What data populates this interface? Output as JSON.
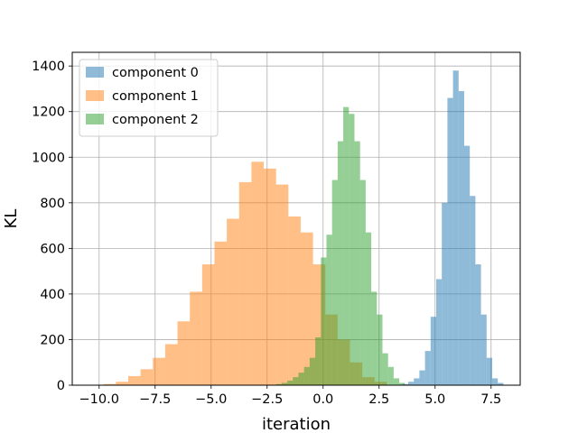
{
  "chart_data": {
    "type": "bar",
    "title": "",
    "xlabel": "iteration",
    "ylabel": "KL",
    "xlim": [
      -11.2,
      8.8
    ],
    "ylim": [
      0,
      1460
    ],
    "x_ticks": [
      -10.0,
      -7.5,
      -5.0,
      -2.5,
      0.0,
      2.5,
      5.0,
      7.5
    ],
    "x_tick_labels": [
      "−10.0",
      "−7.5",
      "−5.0",
      "−2.5",
      "0.0",
      "2.5",
      "5.0",
      "7.5"
    ],
    "y_ticks": [
      0,
      200,
      400,
      600,
      800,
      1000,
      1200,
      1400
    ],
    "y_tick_labels": [
      "0",
      "200",
      "400",
      "600",
      "800",
      "1000",
      "1200",
      "1400"
    ],
    "grid": true,
    "legend_position": "top-left",
    "series": [
      {
        "name": "component 1",
        "color": "#ff7f0e",
        "opacity": 0.5,
        "bins": [
          {
            "x0": -9.8,
            "x1": -9.25,
            "y": 5
          },
          {
            "x0": -9.25,
            "x1": -8.7,
            "y": 15
          },
          {
            "x0": -8.7,
            "x1": -8.15,
            "y": 40
          },
          {
            "x0": -8.15,
            "x1": -7.6,
            "y": 70
          },
          {
            "x0": -7.6,
            "x1": -7.05,
            "y": 120
          },
          {
            "x0": -7.05,
            "x1": -6.5,
            "y": 180
          },
          {
            "x0": -6.5,
            "x1": -5.95,
            "y": 280
          },
          {
            "x0": -5.95,
            "x1": -5.4,
            "y": 410
          },
          {
            "x0": -5.4,
            "x1": -4.85,
            "y": 530
          },
          {
            "x0": -4.85,
            "x1": -4.3,
            "y": 630
          },
          {
            "x0": -4.3,
            "x1": -3.75,
            "y": 730
          },
          {
            "x0": -3.75,
            "x1": -3.2,
            "y": 890
          },
          {
            "x0": -3.2,
            "x1": -2.65,
            "y": 980
          },
          {
            "x0": -2.65,
            "x1": -2.1,
            "y": 950
          },
          {
            "x0": -2.1,
            "x1": -1.55,
            "y": 880
          },
          {
            "x0": -1.55,
            "x1": -1.0,
            "y": 740
          },
          {
            "x0": -1.0,
            "x1": -0.45,
            "y": 670
          },
          {
            "x0": -0.45,
            "x1": 0.1,
            "y": 530
          },
          {
            "x0": 0.1,
            "x1": 0.65,
            "y": 310
          },
          {
            "x0": 0.65,
            "x1": 1.2,
            "y": 200
          },
          {
            "x0": 1.2,
            "x1": 1.75,
            "y": 100
          },
          {
            "x0": 1.75,
            "x1": 2.3,
            "y": 35
          },
          {
            "x0": 2.3,
            "x1": 2.85,
            "y": 15
          }
        ]
      },
      {
        "name": "component 2",
        "color": "#2ca02c",
        "opacity": 0.5,
        "bins": [
          {
            "x0": -2.1,
            "x1": -1.85,
            "y": 5
          },
          {
            "x0": -1.85,
            "x1": -1.6,
            "y": 10
          },
          {
            "x0": -1.6,
            "x1": -1.35,
            "y": 20
          },
          {
            "x0": -1.35,
            "x1": -1.1,
            "y": 35
          },
          {
            "x0": -1.1,
            "x1": -0.85,
            "y": 55
          },
          {
            "x0": -0.85,
            "x1": -0.6,
            "y": 80
          },
          {
            "x0": -0.6,
            "x1": -0.35,
            "y": 120
          },
          {
            "x0": -0.35,
            "x1": -0.1,
            "y": 210
          },
          {
            "x0": -0.1,
            "x1": 0.15,
            "y": 560
          },
          {
            "x0": 0.15,
            "x1": 0.4,
            "y": 660
          },
          {
            "x0": 0.4,
            "x1": 0.65,
            "y": 900
          },
          {
            "x0": 0.65,
            "x1": 0.9,
            "y": 1070
          },
          {
            "x0": 0.9,
            "x1": 1.15,
            "y": 1220
          },
          {
            "x0": 1.15,
            "x1": 1.4,
            "y": 1190
          },
          {
            "x0": 1.4,
            "x1": 1.65,
            "y": 1070
          },
          {
            "x0": 1.65,
            "x1": 1.9,
            "y": 900
          },
          {
            "x0": 1.9,
            "x1": 2.15,
            "y": 670
          },
          {
            "x0": 2.15,
            "x1": 2.4,
            "y": 410
          },
          {
            "x0": 2.4,
            "x1": 2.65,
            "y": 310
          },
          {
            "x0": 2.65,
            "x1": 2.9,
            "y": 140
          },
          {
            "x0": 2.9,
            "x1": 3.15,
            "y": 80
          },
          {
            "x0": 3.15,
            "x1": 3.4,
            "y": 30
          },
          {
            "x0": 3.4,
            "x1": 3.65,
            "y": 10
          }
        ]
      },
      {
        "name": "component 0",
        "color": "#1f77b4",
        "opacity": 0.5,
        "bins": [
          {
            "x0": 3.55,
            "x1": 3.8,
            "y": 5
          },
          {
            "x0": 3.8,
            "x1": 4.05,
            "y": 15
          },
          {
            "x0": 4.05,
            "x1": 4.3,
            "y": 30
          },
          {
            "x0": 4.3,
            "x1": 4.55,
            "y": 65
          },
          {
            "x0": 4.55,
            "x1": 4.8,
            "y": 150
          },
          {
            "x0": 4.8,
            "x1": 5.05,
            "y": 300
          },
          {
            "x0": 5.05,
            "x1": 5.3,
            "y": 465
          },
          {
            "x0": 5.3,
            "x1": 5.55,
            "y": 800
          },
          {
            "x0": 5.55,
            "x1": 5.8,
            "y": 1260
          },
          {
            "x0": 5.8,
            "x1": 6.05,
            "y": 1380
          },
          {
            "x0": 6.05,
            "x1": 6.3,
            "y": 1290
          },
          {
            "x0": 6.3,
            "x1": 6.55,
            "y": 1050
          },
          {
            "x0": 6.55,
            "x1": 6.8,
            "y": 830
          },
          {
            "x0": 6.8,
            "x1": 7.05,
            "y": 530
          },
          {
            "x0": 7.05,
            "x1": 7.3,
            "y": 310
          },
          {
            "x0": 7.3,
            "x1": 7.55,
            "y": 120
          },
          {
            "x0": 7.55,
            "x1": 7.8,
            "y": 30
          },
          {
            "x0": 7.8,
            "x1": 8.05,
            "y": 10
          }
        ]
      }
    ],
    "legend": [
      {
        "name": "component 0",
        "color": "#1f77b4"
      },
      {
        "name": "component 1",
        "color": "#ff7f0e"
      },
      {
        "name": "component 2",
        "color": "#2ca02c"
      }
    ]
  }
}
